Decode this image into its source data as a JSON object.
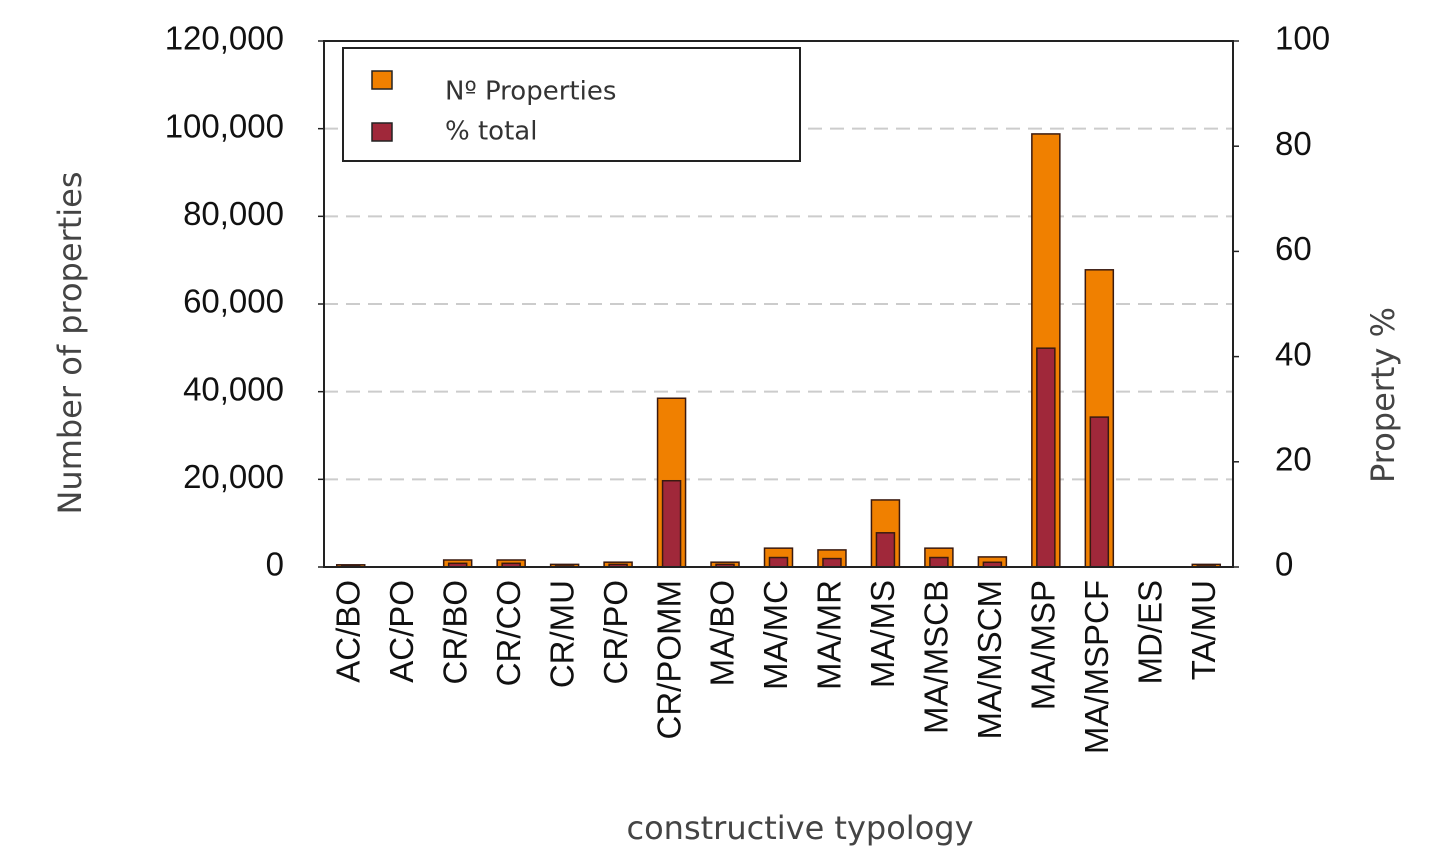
{
  "chart_data": {
    "type": "bar",
    "x_label": "constructive typology",
    "y_label": "Number of properties",
    "y2_label": "Property %",
    "categories": [
      "AC/BO",
      "AC/PO",
      "CR/BO",
      "CR/CO",
      "CR/MU",
      "CR/PO",
      "CR/POMM",
      "MA/BO",
      "MA/MC",
      "MA/MR",
      "MA/MS",
      "MA/MSCB",
      "MA/MSCM",
      "MA/MSP",
      "MA/MSPCF",
      "MD/ES",
      "TA/MU"
    ],
    "series": [
      {
        "name": "Nº Properties",
        "color": "#f08000",
        "axis": "y",
        "values": [
          500,
          0,
          1600,
          1600,
          600,
          1100,
          38500,
          1100,
          4300,
          3900,
          15300,
          4300,
          2300,
          98800,
          67800,
          0,
          600
        ]
      },
      {
        "name": "% total",
        "color": "#a0283a",
        "axis": "y2",
        "values": [
          0.2,
          0,
          0.7,
          0.7,
          0.2,
          0.5,
          16.4,
          0.5,
          1.8,
          1.6,
          6.5,
          1.8,
          0.9,
          41.6,
          28.5,
          0,
          0.2
        ]
      }
    ],
    "ylim": [
      0,
      120000
    ],
    "yticks": [
      {
        "value": 0,
        "label": "0"
      },
      {
        "value": 20000,
        "label": "20,000"
      },
      {
        "value": 40000,
        "label": "40,000"
      },
      {
        "value": 60000,
        "label": "60,000"
      },
      {
        "value": 80000,
        "label": "80,000"
      },
      {
        "value": 100000,
        "label": "100,000"
      },
      {
        "value": 120000,
        "label": "120,000"
      }
    ],
    "y2lim": [
      0,
      100
    ],
    "y2ticks": [
      0,
      20,
      40,
      60,
      80,
      100
    ],
    "grid": true,
    "legend": "upper left"
  }
}
